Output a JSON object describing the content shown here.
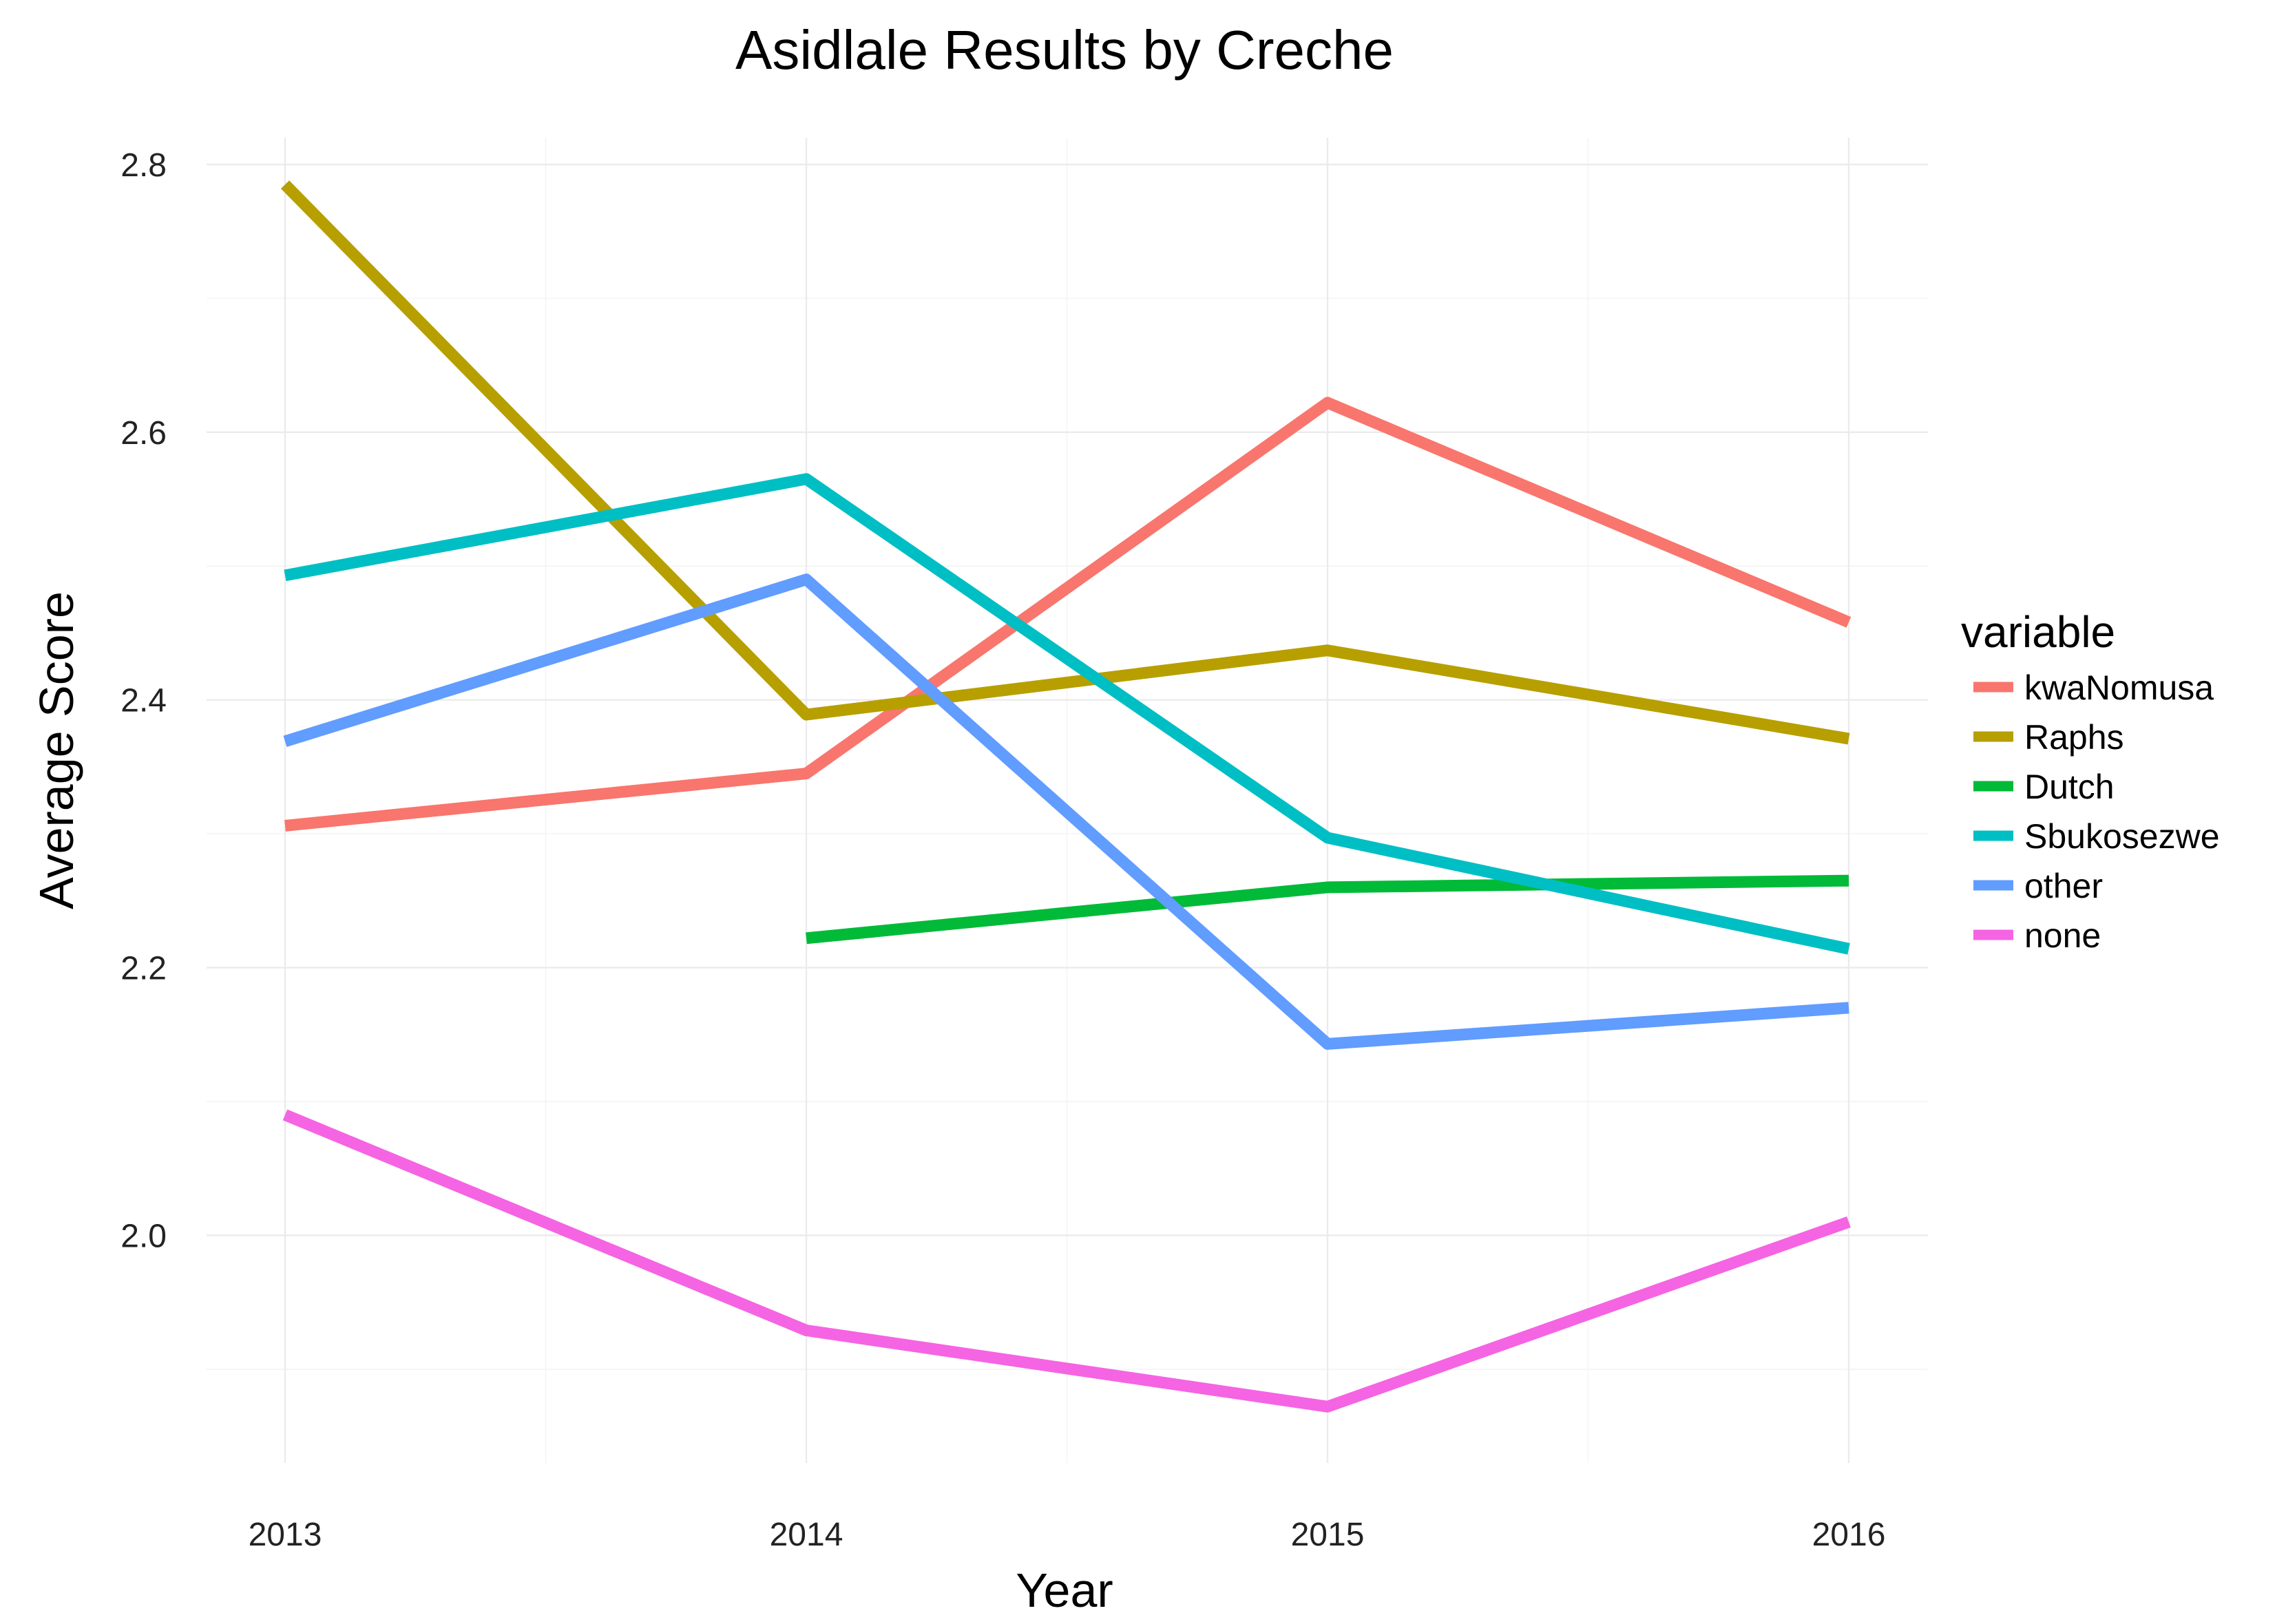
{
  "chart_data": {
    "type": "line",
    "title": "Asidlale Results by Creche",
    "xlabel": "Year",
    "ylabel": "Average Score",
    "x": [
      2013,
      2014,
      2015,
      2016
    ],
    "xlim": [
      2013,
      2016
    ],
    "ylim": [
      1.83,
      2.82
    ],
    "y_ticks": [
      2.0,
      2.2,
      2.4,
      2.6,
      2.8
    ],
    "y_tick_labels": [
      "2.0",
      "2.2",
      "2.4",
      "2.6",
      "2.8"
    ],
    "x_tick_labels": [
      "2013",
      "2014",
      "2015",
      "2016"
    ],
    "grid": true,
    "legend_title": "variable",
    "legend_position": "right",
    "series": [
      {
        "name": "kwaNomusa",
        "color": "#F8766D",
        "values": [
          2.306,
          2.345,
          2.622,
          2.458
        ]
      },
      {
        "name": "Raphs",
        "color": "#B79F00",
        "values": [
          2.785,
          2.389,
          2.437,
          2.371
        ]
      },
      {
        "name": "Dutch",
        "color": "#00BA38",
        "values": [
          null,
          2.222,
          2.26,
          2.265
        ]
      },
      {
        "name": "Sbukosezwe",
        "color": "#00BFC4",
        "values": [
          2.493,
          2.565,
          2.297,
          2.214
        ]
      },
      {
        "name": "other",
        "color": "#619CFF",
        "values": [
          2.369,
          2.49,
          2.143,
          2.17
        ]
      },
      {
        "name": "none",
        "color": "#F564E3",
        "values": [
          2.09,
          1.929,
          1.872,
          2.01
        ]
      }
    ]
  }
}
